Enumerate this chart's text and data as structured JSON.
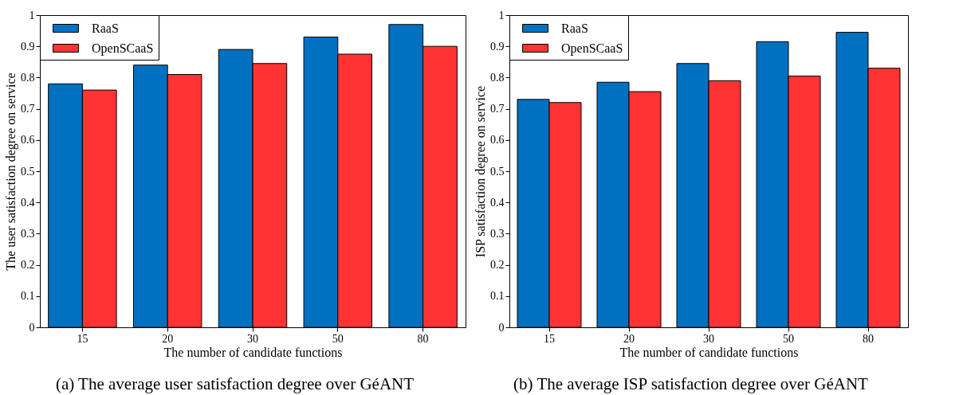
{
  "chart_data": [
    {
      "type": "bar",
      "xlabel": "The number of candidate functions",
      "ylabel": "The user satisfaction degree on service",
      "categories": [
        "15",
        "20",
        "30",
        "50",
        "80"
      ],
      "series": [
        {
          "name": "RaaS",
          "color": "#0070c0",
          "values": [
            0.78,
            0.84,
            0.89,
            0.93,
            0.97
          ]
        },
        {
          "name": "OpenSCaaS",
          "color": "#ff3333",
          "values": [
            0.76,
            0.81,
            0.845,
            0.875,
            0.9
          ]
        }
      ],
      "ylim": [
        0,
        1
      ],
      "yticks": [
        0,
        0.1,
        0.2,
        0.3,
        0.4,
        0.5,
        0.6,
        0.7,
        0.8,
        0.9,
        1
      ],
      "grid": false,
      "legend": "top left",
      "annotations": [
        "(a) The average user satisfaction degree over GéANT"
      ]
    },
    {
      "type": "bar",
      "xlabel": "The number of candidate functions",
      "ylabel": "ISP satisfaction degree on service",
      "categories": [
        "15",
        "20",
        "30",
        "50",
        "80"
      ],
      "series": [
        {
          "name": "RaaS",
          "color": "#0070c0",
          "values": [
            0.73,
            0.785,
            0.845,
            0.915,
            0.945
          ]
        },
        {
          "name": "OpenSCaaS",
          "color": "#ff3333",
          "values": [
            0.72,
            0.755,
            0.79,
            0.805,
            0.83
          ]
        }
      ],
      "ylim": [
        0,
        1
      ],
      "yticks": [
        0,
        0.1,
        0.2,
        0.3,
        0.4,
        0.5,
        0.6,
        0.7,
        0.8,
        0.9,
        1
      ],
      "grid": false,
      "legend": "top left",
      "annotations": [
        "(b) The average ISP satisfaction degree over GéANT"
      ]
    }
  ]
}
